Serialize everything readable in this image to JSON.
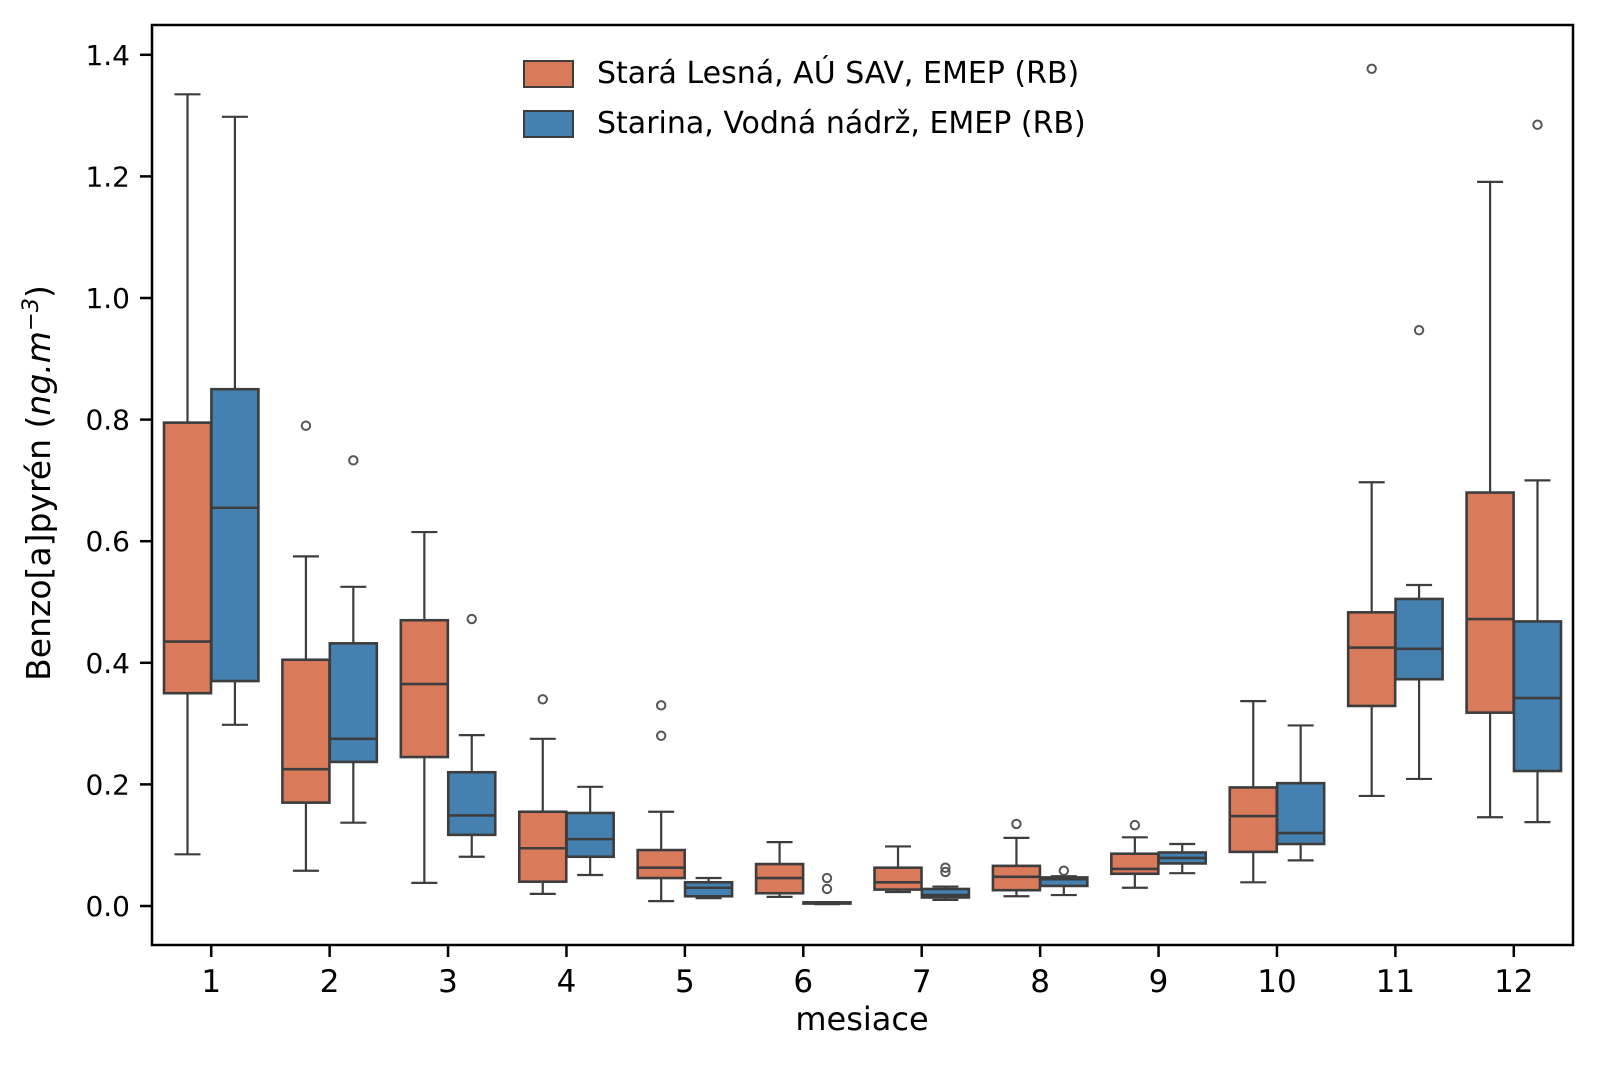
{
  "figure": {
    "xlabel": "mesiace",
    "ylabel": "Benzo[a]pyrén (ng.m⁻³)",
    "ylabel_parts": {
      "main": "Benzo[a]pyrén",
      "open": " (",
      "unit": "ng.m",
      "exp": "−3",
      "close": ")"
    }
  },
  "chart_data": {
    "type": "boxplot",
    "title": "",
    "xlabel": "mesiace",
    "ylabel": "Benzo[a]pyrén (ng.m⁻³)",
    "categories": [
      "1",
      "2",
      "3",
      "4",
      "5",
      "6",
      "7",
      "8",
      "9",
      "10",
      "11",
      "12"
    ],
    "yticks": [
      0.0,
      0.2,
      0.4,
      0.6,
      0.8,
      1.0,
      1.2,
      1.4
    ],
    "yticklabels": [
      "0.0",
      "0.2",
      "0.4",
      "0.6",
      "0.8",
      "1.0",
      "1.2",
      "1.4"
    ],
    "ylim": [
      -0.064,
      1.449
    ],
    "grid": false,
    "legend_position": "upper center-left, no frame",
    "axis_color": "#000000",
    "box_edge_color": "#3d3d3d",
    "flier_edge_color": "#555555",
    "series": [
      {
        "name": "Stará Lesná, AÚ SAV, EMEP (RB)",
        "color": "#d97a5b",
        "boxes": [
          {
            "whislo": 0.085,
            "q1": 0.35,
            "med": 0.435,
            "q3": 0.795,
            "whishi": 1.335,
            "fliers": []
          },
          {
            "whislo": 0.058,
            "q1": 0.17,
            "med": 0.225,
            "q3": 0.405,
            "whishi": 0.575,
            "fliers": [
              0.79
            ]
          },
          {
            "whislo": 0.038,
            "q1": 0.245,
            "med": 0.365,
            "q3": 0.47,
            "whishi": 0.615,
            "fliers": []
          },
          {
            "whislo": 0.02,
            "q1": 0.04,
            "med": 0.095,
            "q3": 0.155,
            "whishi": 0.275,
            "fliers": [
              0.34
            ]
          },
          {
            "whislo": 0.008,
            "q1": 0.046,
            "med": 0.063,
            "q3": 0.092,
            "whishi": 0.155,
            "fliers": [
              0.28,
              0.33
            ]
          },
          {
            "whislo": 0.015,
            "q1": 0.021,
            "med": 0.046,
            "q3": 0.069,
            "whishi": 0.105,
            "fliers": []
          },
          {
            "whislo": 0.023,
            "q1": 0.027,
            "med": 0.039,
            "q3": 0.063,
            "whishi": 0.098,
            "fliers": []
          },
          {
            "whislo": 0.016,
            "q1": 0.026,
            "med": 0.048,
            "q3": 0.066,
            "whishi": 0.112,
            "fliers": [
              0.135
            ]
          },
          {
            "whislo": 0.03,
            "q1": 0.053,
            "med": 0.061,
            "q3": 0.086,
            "whishi": 0.113,
            "fliers": [
              0.133
            ]
          },
          {
            "whislo": 0.039,
            "q1": 0.089,
            "med": 0.148,
            "q3": 0.195,
            "whishi": 0.337,
            "fliers": []
          },
          {
            "whislo": 0.181,
            "q1": 0.329,
            "med": 0.425,
            "q3": 0.483,
            "whishi": 0.697,
            "fliers": [
              1.377
            ]
          },
          {
            "whislo": 0.146,
            "q1": 0.318,
            "med": 0.472,
            "q3": 0.68,
            "whishi": 1.191,
            "fliers": []
          }
        ]
      },
      {
        "name": "Starina, Vodná nádrž, EMEP (RB)",
        "color": "#4581b0",
        "boxes": [
          {
            "whislo": 0.298,
            "q1": 0.37,
            "med": 0.655,
            "q3": 0.85,
            "whishi": 1.298,
            "fliers": []
          },
          {
            "whislo": 0.137,
            "q1": 0.237,
            "med": 0.275,
            "q3": 0.432,
            "whishi": 0.525,
            "fliers": [
              0.733
            ]
          },
          {
            "whislo": 0.081,
            "q1": 0.117,
            "med": 0.149,
            "q3": 0.22,
            "whishi": 0.281,
            "fliers": [
              0.472
            ]
          },
          {
            "whislo": 0.051,
            "q1": 0.081,
            "med": 0.11,
            "q3": 0.153,
            "whishi": 0.196,
            "fliers": []
          },
          {
            "whislo": 0.013,
            "q1": 0.016,
            "med": 0.03,
            "q3": 0.039,
            "whishi": 0.046,
            "fliers": []
          },
          {
            "whislo": 0.003,
            "q1": 0.004,
            "med": 0.005,
            "q3": 0.006,
            "whishi": 0.006,
            "fliers": [
              0.046,
              0.028
            ]
          },
          {
            "whislo": 0.01,
            "q1": 0.014,
            "med": 0.018,
            "q3": 0.028,
            "whishi": 0.032,
            "fliers": [
              0.056,
              0.063
            ]
          },
          {
            "whislo": 0.018,
            "q1": 0.033,
            "med": 0.044,
            "q3": 0.047,
            "whishi": 0.049,
            "fliers": [
              0.058
            ]
          },
          {
            "whislo": 0.054,
            "q1": 0.07,
            "med": 0.079,
            "q3": 0.088,
            "whishi": 0.102,
            "fliers": []
          },
          {
            "whislo": 0.075,
            "q1": 0.102,
            "med": 0.12,
            "q3": 0.202,
            "whishi": 0.297,
            "fliers": []
          },
          {
            "whislo": 0.209,
            "q1": 0.373,
            "med": 0.423,
            "q3": 0.505,
            "whishi": 0.528,
            "fliers": [
              0.947
            ]
          },
          {
            "whislo": 0.138,
            "q1": 0.222,
            "med": 0.342,
            "q3": 0.468,
            "whishi": 0.7,
            "fliers": [
              1.285
            ]
          }
        ]
      }
    ]
  }
}
